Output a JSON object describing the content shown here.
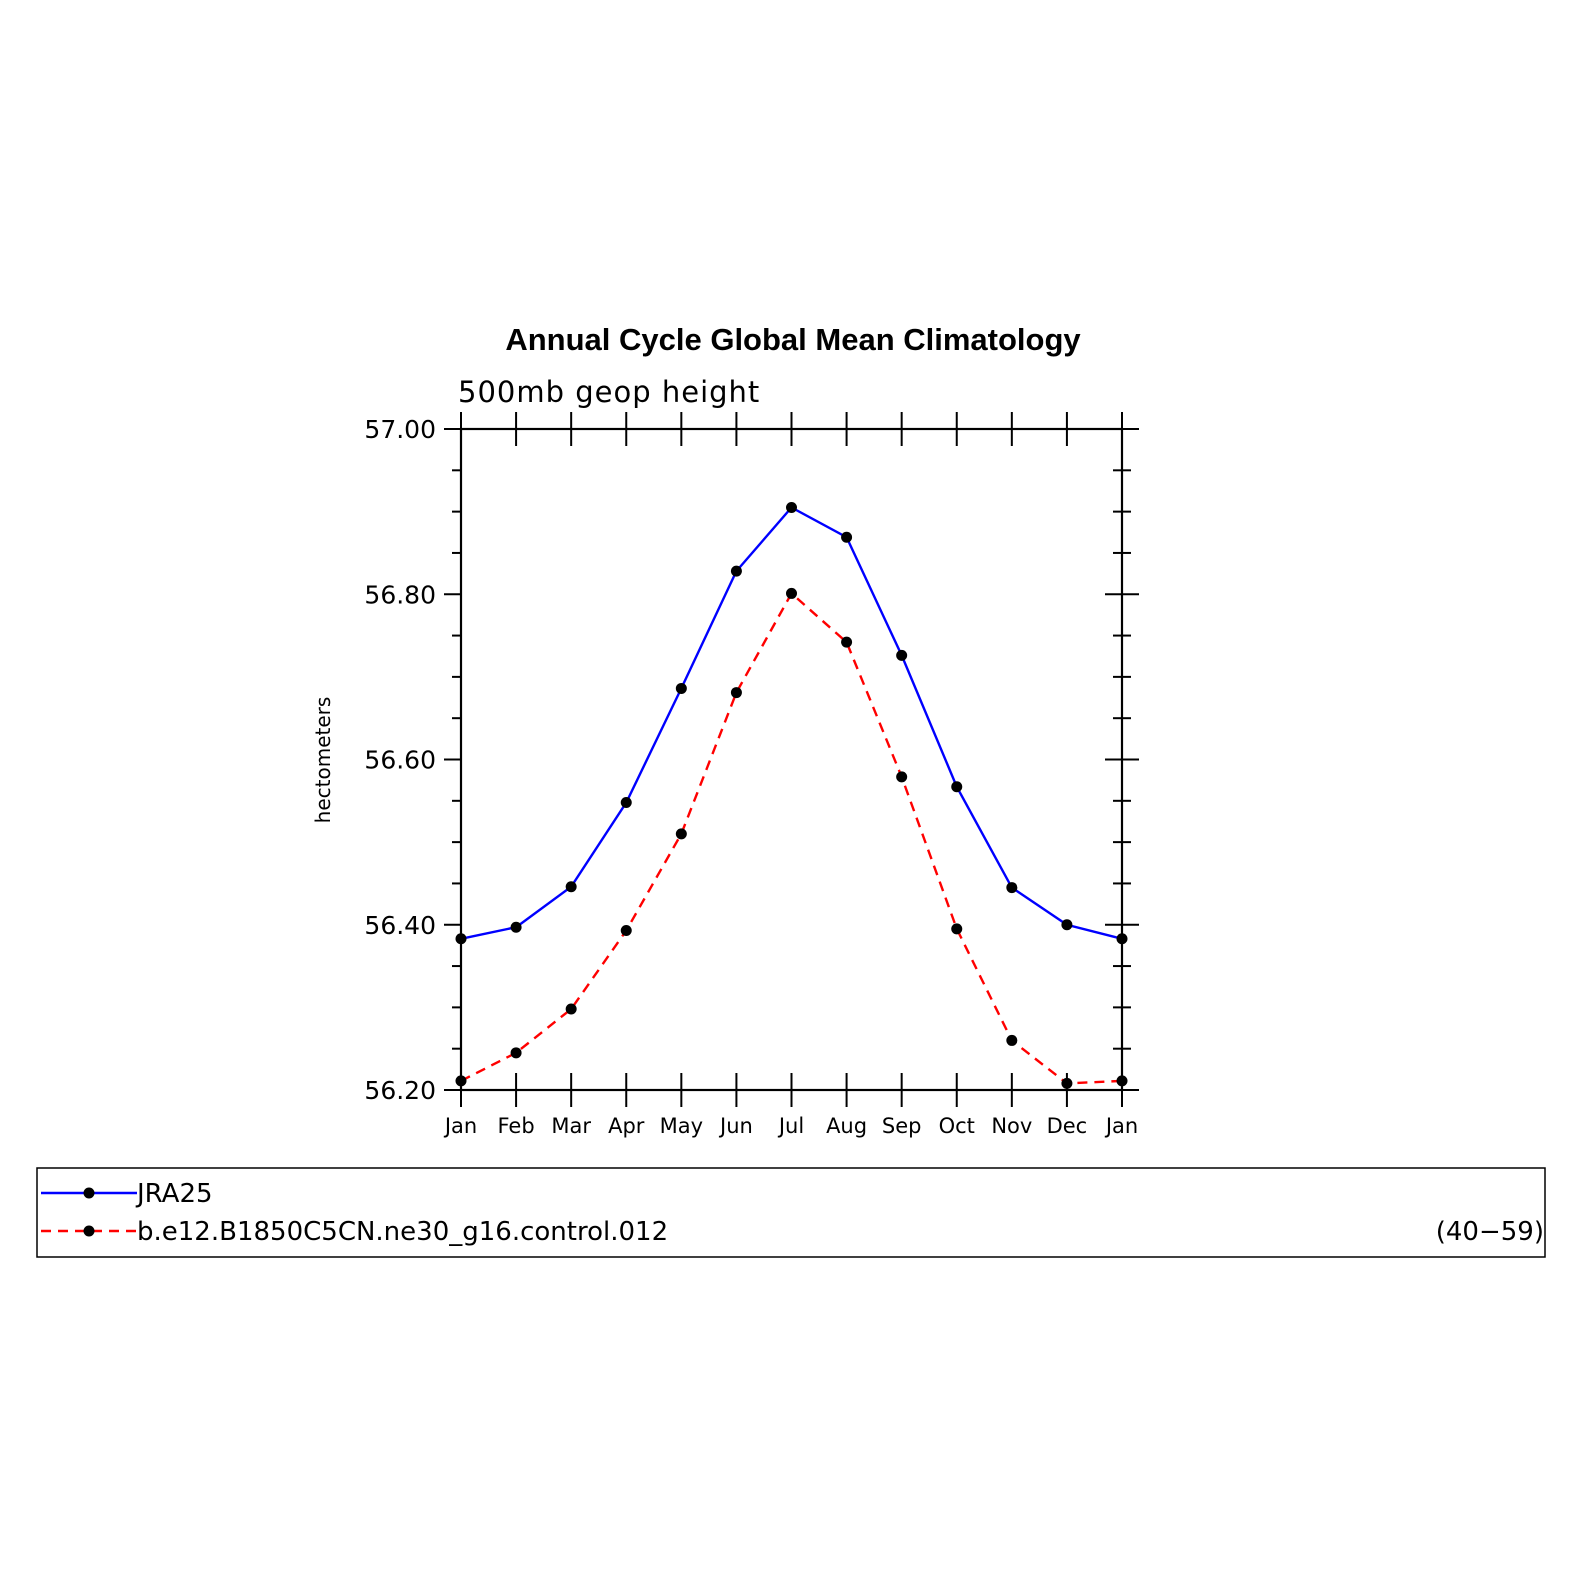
{
  "chart_data": {
    "type": "line",
    "title": "Annual Cycle Global Mean Climatology",
    "subtitle": "500mb geop height",
    "xlabel": "",
    "ylabel": "hectometers",
    "categories": [
      "Jan",
      "Feb",
      "Mar",
      "Apr",
      "May",
      "Jun",
      "Jul",
      "Aug",
      "Sep",
      "Oct",
      "Nov",
      "Dec",
      "Jan"
    ],
    "ylim": [
      56.2,
      57.0
    ],
    "yticks": [
      "56.20",
      "56.40",
      "56.60",
      "56.80",
      "57.00"
    ],
    "grid": false,
    "legend_position": "bottom",
    "series": [
      {
        "name": "JRA25",
        "color": "#0000ff",
        "dash": "solid",
        "values": [
          56.383,
          56.397,
          56.446,
          56.548,
          56.686,
          56.828,
          56.905,
          56.869,
          56.726,
          56.567,
          56.445,
          56.4,
          56.383
        ]
      },
      {
        "name": "b.e12.B1850C5CN.ne30_g16.control.012",
        "color": "#ff0000",
        "dash": "dashed",
        "values": [
          56.211,
          56.245,
          56.298,
          56.393,
          56.51,
          56.681,
          56.801,
          56.742,
          56.579,
          56.395,
          56.26,
          56.208,
          56.211
        ]
      }
    ],
    "legend_note": "(40−59)"
  }
}
